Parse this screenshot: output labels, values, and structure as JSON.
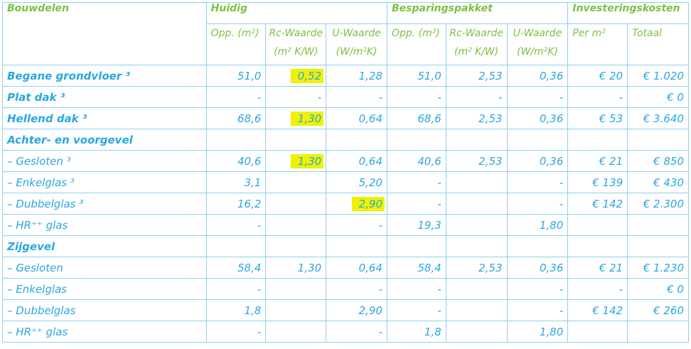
{
  "headers": {
    "col_bouwdelen": "Bouwdelen",
    "group_huidig": "Huidig",
    "group_besparing": "Besparingspakket",
    "group_investering": "Investeringskosten",
    "sub_opp": "Opp. (m²)",
    "sub_rc_line1": "Rc-Waarde",
    "sub_rc_line2": "(m² K/W)",
    "sub_u_line1": "U-Waarde",
    "sub_u_line2": "(W/m²K)",
    "sub_per_m2": "Per m²",
    "sub_totaal": "Totaal"
  },
  "rows": [
    {
      "label": "Begane grondvloer ³",
      "bold": true,
      "h_opp": "51,0",
      "h_rc": "0,52",
      "h_u": "1,28",
      "b_opp": "51,0",
      "b_rc": "2,53",
      "b_u": "0,36",
      "per_m2": "€ 20",
      "totaal": "€ 1.020",
      "highlight": "h_rc"
    },
    {
      "label": "Plat dak ³",
      "bold": true,
      "h_opp": "-",
      "h_rc": "-",
      "h_u": "-",
      "b_opp": "-",
      "b_rc": "-",
      "b_u": "-",
      "per_m2": "-",
      "totaal": "€ 0"
    },
    {
      "label": "Hellend dak ³",
      "bold": true,
      "h_opp": "68,6",
      "h_rc": "1,30",
      "h_u": "0,64",
      "b_opp": "68,6",
      "b_rc": "2,53",
      "b_u": "0,36",
      "per_m2": "€ 53",
      "totaal": "€ 3.640",
      "highlight": "h_rc"
    },
    {
      "label": "Achter- en voorgevel",
      "bold": true,
      "section": true
    },
    {
      "label": "– Gesloten ³",
      "h_opp": "40,6",
      "h_rc": "1,30",
      "h_u": "0,64",
      "b_opp": "40,6",
      "b_rc": "2,53",
      "b_u": "0,36",
      "per_m2": "€ 21",
      "totaal": "€ 850",
      "highlight": "h_rc"
    },
    {
      "label": "– Enkelglas ³",
      "h_opp": "3,1",
      "h_rc": "",
      "h_u": "5,20",
      "b_opp": "-",
      "b_rc": "",
      "b_u": "-",
      "per_m2": "€ 139",
      "totaal": "€ 430"
    },
    {
      "label": "– Dubbelglas ³",
      "h_opp": "16,2",
      "h_rc": "",
      "h_u": "2,90",
      "b_opp": "-",
      "b_rc": "",
      "b_u": "-",
      "per_m2": "€ 142",
      "totaal": "€ 2.300",
      "highlight": "h_u"
    },
    {
      "label": "– HR⁺⁺ glas",
      "h_opp": "-",
      "h_rc": "",
      "h_u": "-",
      "b_opp": "19,3",
      "b_rc": "",
      "b_u": "1,80",
      "per_m2": "",
      "totaal": ""
    },
    {
      "label": "Zijgevel",
      "bold": true,
      "section": true
    },
    {
      "label": "– Gesloten",
      "h_opp": "58,4",
      "h_rc": "1,30",
      "h_u": "0,64",
      "b_opp": "58,4",
      "b_rc": "2,53",
      "b_u": "0,36",
      "per_m2": "€ 21",
      "totaal": "€ 1.230"
    },
    {
      "label": "– Enkelglas",
      "h_opp": "-",
      "h_rc": "",
      "h_u": "-",
      "b_opp": "-",
      "b_rc": "",
      "b_u": "-",
      "per_m2": "-",
      "totaal": "€ 0"
    },
    {
      "label": "– Dubbelglas",
      "h_opp": "1,8",
      "h_rc": "",
      "h_u": "2,90",
      "b_opp": "-",
      "b_rc": "",
      "b_u": "-",
      "per_m2": "€ 142",
      "totaal": "€ 260"
    },
    {
      "label": "– HR⁺⁺ glas",
      "h_opp": "-",
      "h_rc": "",
      "h_u": "-",
      "b_opp": "1,8",
      "b_rc": "",
      "b_u": "1,80",
      "per_m2": "",
      "totaal": ""
    }
  ],
  "colors": {
    "header_green": "#7cc142",
    "body_blue": "#2aa7e0",
    "grid_line": "#8ed0ee",
    "highlight_yellow": "#eef200"
  }
}
